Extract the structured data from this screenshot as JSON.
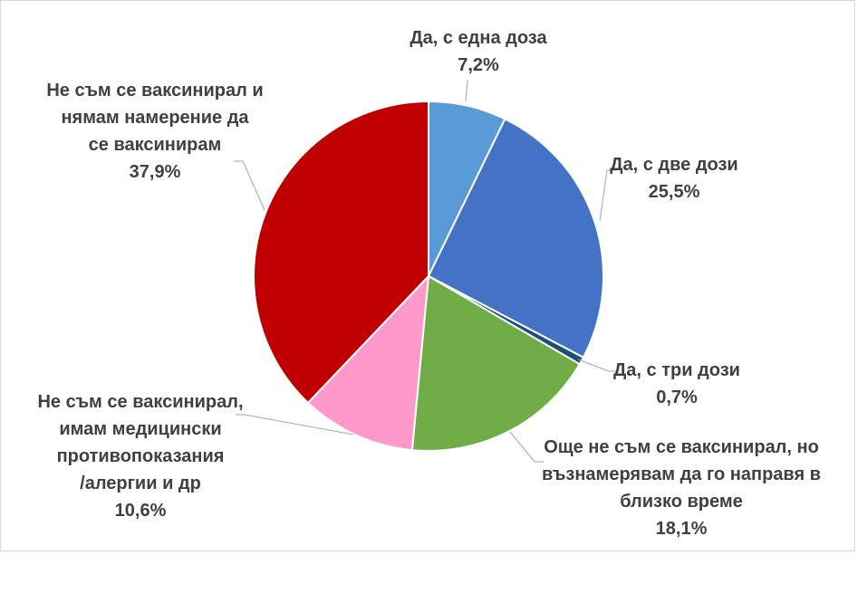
{
  "chart_data": {
    "type": "pie",
    "slices": [
      {
        "lines": [
          "Да, с една доза"
        ],
        "value_label": "7,2%",
        "value": 7.2,
        "color": "#5b9bd5"
      },
      {
        "lines": [
          "Да, с две дози"
        ],
        "value_label": "25,5%",
        "value": 25.5,
        "color": "#4472c4"
      },
      {
        "lines": [
          "Да, с три дози"
        ],
        "value_label": "0,7%",
        "value": 0.7,
        "color": "#1f4e79"
      },
      {
        "lines": [
          "Още не съм се ваксинирал, но",
          "възнамерявам да го направя в",
          "близко време"
        ],
        "value_label": "18,1%",
        "value": 18.1,
        "color": "#70ad47"
      },
      {
        "lines": [
          "Не съм се ваксинирал,",
          "имам медицински",
          "противопоказания",
          "/алергии и др"
        ],
        "value_label": "10,6%",
        "value": 10.6,
        "color": "#ff99cc"
      },
      {
        "lines": [
          "Не съм се ваксинирал и",
          "нямам намерение да",
          "се ваксинирам"
        ],
        "value_label": "37,9%",
        "value": 37.9,
        "color": "#c00000"
      }
    ]
  }
}
